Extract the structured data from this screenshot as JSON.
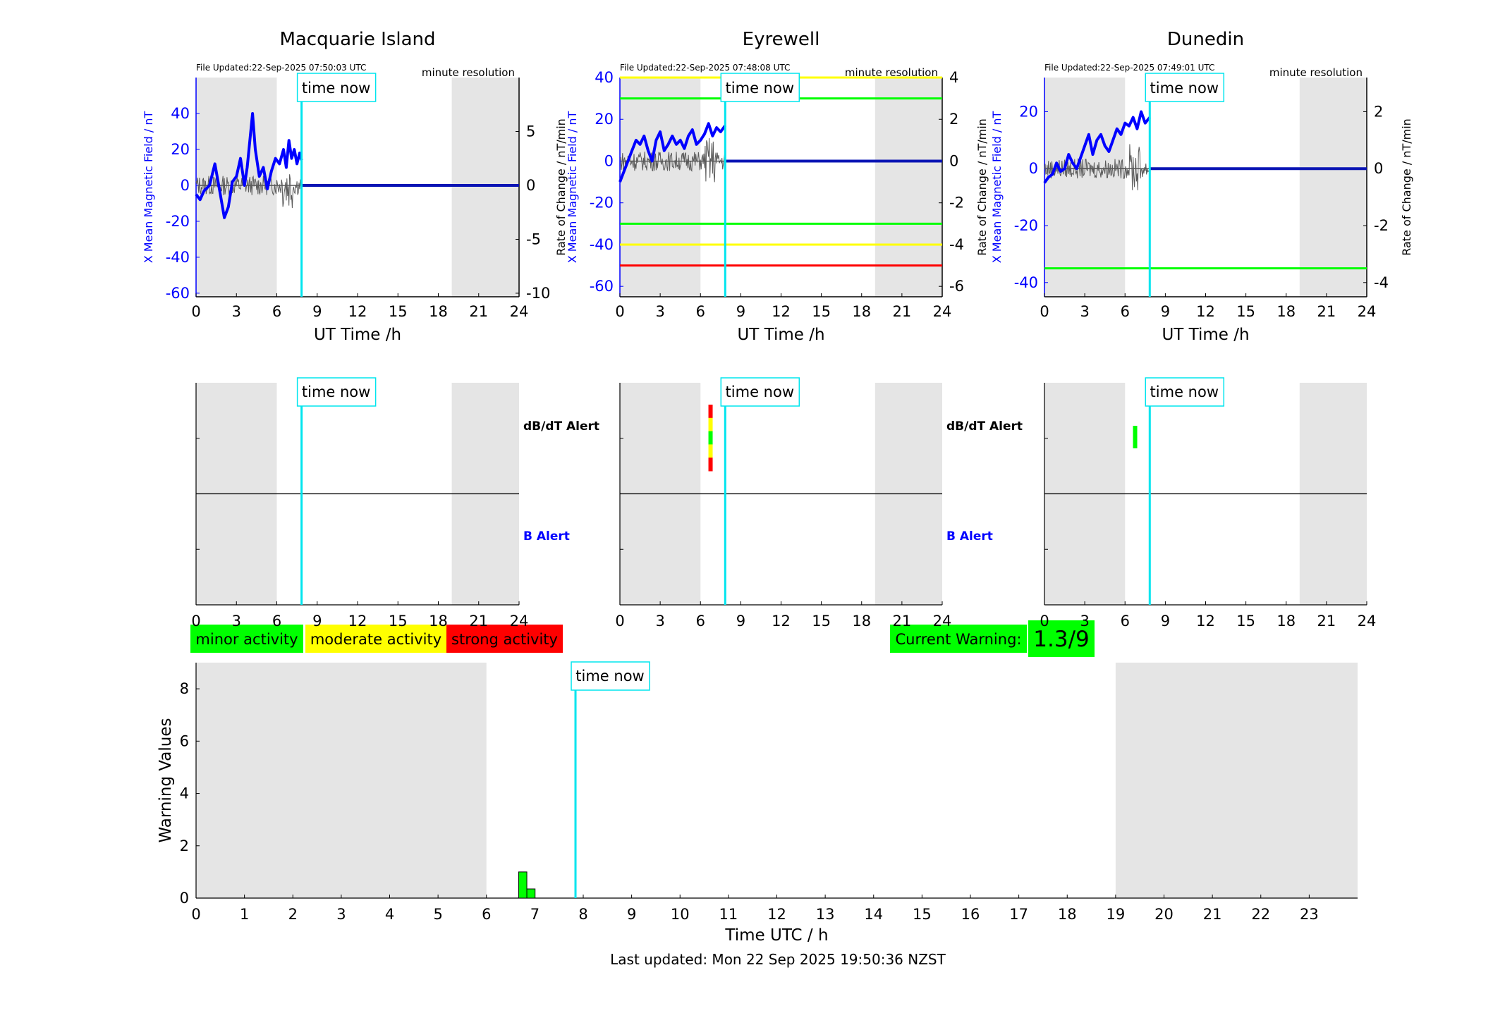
{
  "colors": {
    "shade": "#e5e5e5",
    "blue": "#0000ff",
    "navy": "#0a14b4",
    "cyan": "#00e5ee",
    "green": "#00ff00",
    "yellow": "#ffff00",
    "red": "#ff0000",
    "grey_trace": "#5a5a5a"
  },
  "common": {
    "xlabel": "UT Time /h",
    "resolution": "minute resolution",
    "now_label": "time now",
    "now_hour": 7.84,
    "night_bands": [
      [
        0,
        6
      ],
      [
        19,
        24
      ]
    ],
    "xticks": [
      0,
      3,
      6,
      9,
      12,
      15,
      18,
      21,
      24
    ],
    "left_ylabel": "X Mean Magnetic Field / nT",
    "right_ylabel": "Rate of Change / nT/min",
    "dbdt_alert_label": "dB/dT Alert",
    "b_alert_label": "B Alert"
  },
  "chart_data": [
    {
      "type": "line",
      "title": "Macquarie Island",
      "file_updated": "File Updated:22-Sep-2025 07:50:03 UTC",
      "ylim_left": [
        -62,
        60
      ],
      "yticks_left": [
        -60,
        -40,
        -20,
        0,
        20,
        40
      ],
      "ylim_right": [
        -10.33,
        10.0
      ],
      "yticks_right": [
        -10,
        -5,
        0,
        5
      ],
      "show_right_label": false,
      "thresholds": [],
      "series": [
        {
          "axis": "left",
          "x": [
            0,
            0.3,
            0.6,
            1.0,
            1.4,
            1.8,
            2.1,
            2.4,
            2.7,
            3.0,
            3.3,
            3.6,
            3.8,
            4.0,
            4.2,
            4.4,
            4.7,
            5.0,
            5.3,
            5.6,
            5.9,
            6.2,
            6.5,
            6.7,
            6.9,
            7.1,
            7.3,
            7.5,
            7.7,
            7.84
          ],
          "y": [
            -5,
            -8,
            -3,
            0,
            12,
            -5,
            -18,
            -12,
            2,
            5,
            15,
            0,
            10,
            25,
            40,
            20,
            5,
            10,
            -2,
            8,
            15,
            12,
            20,
            10,
            25,
            15,
            20,
            12,
            18,
            14
          ]
        }
      ],
      "bar_alerts": []
    },
    {
      "type": "line",
      "title": "Eyrewell",
      "file_updated": "File Updated:22-Sep-2025 07:48:08 UTC",
      "ylim_left": [
        -65,
        40
      ],
      "yticks_left": [
        -60,
        -40,
        -20,
        0,
        20,
        40
      ],
      "ylim_right": [
        -6.5,
        4.0
      ],
      "yticks_right": [
        -6,
        -4,
        -2,
        0,
        2,
        4
      ],
      "show_right_label": true,
      "thresholds": [
        {
          "value": 4,
          "color": "yellow"
        },
        {
          "value": 3,
          "color": "green"
        },
        {
          "value": -3,
          "color": "green"
        },
        {
          "value": -4,
          "color": "yellow"
        },
        {
          "value": -5,
          "color": "red"
        }
      ],
      "series": [
        {
          "axis": "left",
          "x": [
            0,
            0.3,
            0.6,
            0.9,
            1.2,
            1.5,
            1.8,
            2.1,
            2.4,
            2.7,
            3.0,
            3.3,
            3.6,
            3.9,
            4.2,
            4.5,
            4.8,
            5.1,
            5.4,
            5.7,
            6.0,
            6.3,
            6.6,
            6.9,
            7.2,
            7.5,
            7.84
          ],
          "y": [
            -10,
            -5,
            0,
            5,
            10,
            8,
            12,
            5,
            0,
            10,
            14,
            5,
            8,
            12,
            8,
            10,
            6,
            12,
            15,
            8,
            10,
            13,
            18,
            12,
            16,
            14,
            17
          ]
        }
      ],
      "bar_alerts": [
        {
          "hour": 6.75,
          "colors": [
            "red",
            "yellow",
            "green",
            "yellow",
            "red"
          ]
        }
      ]
    },
    {
      "type": "line",
      "title": "Dunedin",
      "file_updated": "File Updated:22-Sep-2025 07:49:01 UTC",
      "ylim_left": [
        -45,
        32
      ],
      "yticks_left": [
        -40,
        -20,
        0,
        20
      ],
      "ylim_right": [
        -4.5,
        3.2
      ],
      "yticks_right": [
        -4,
        -2,
        0,
        2
      ],
      "show_right_label": true,
      "thresholds": [
        {
          "value": -3.5,
          "color": "green"
        }
      ],
      "series": [
        {
          "axis": "left",
          "x": [
            0,
            0.3,
            0.6,
            0.9,
            1.2,
            1.5,
            1.8,
            2.1,
            2.4,
            2.7,
            3.0,
            3.3,
            3.6,
            3.9,
            4.2,
            4.5,
            4.8,
            5.1,
            5.4,
            5.7,
            6.0,
            6.3,
            6.6,
            6.9,
            7.2,
            7.5,
            7.84
          ],
          "y": [
            -5,
            -3,
            -2,
            2,
            -1,
            0,
            5,
            2,
            0,
            4,
            8,
            12,
            5,
            10,
            12,
            8,
            6,
            10,
            14,
            12,
            16,
            15,
            18,
            14,
            20,
            16,
            18
          ]
        }
      ],
      "bar_alerts": [
        {
          "hour": 6.75,
          "colors": [
            "green"
          ]
        }
      ]
    },
    {
      "type": "bar",
      "xlabel": "Time UTC / h",
      "ylabel": "Warning Values",
      "xlim": [
        0,
        24
      ],
      "ylim": [
        0,
        9
      ],
      "xticks": [
        0,
        1,
        2,
        3,
        4,
        5,
        6,
        7,
        8,
        9,
        10,
        11,
        12,
        13,
        14,
        15,
        16,
        17,
        18,
        19,
        20,
        21,
        22,
        23
      ],
      "yticks": [
        0,
        2,
        4,
        6,
        8
      ],
      "bars": [
        {
          "x": 6.75,
          "value": 1.0
        },
        {
          "x": 6.92,
          "value": 0.35
        }
      ],
      "night_bands": [
        [
          0,
          6
        ],
        [
          19,
          24
        ]
      ]
    }
  ],
  "legend": {
    "minor": "minor activity",
    "moderate": "moderate activity",
    "strong": "strong activity"
  },
  "warning": {
    "label": "Current Warning:",
    "value": "1.3/9"
  },
  "footer": {
    "last_updated": "Last updated: Mon 22 Sep 2025 19:50:36 NZST"
  }
}
